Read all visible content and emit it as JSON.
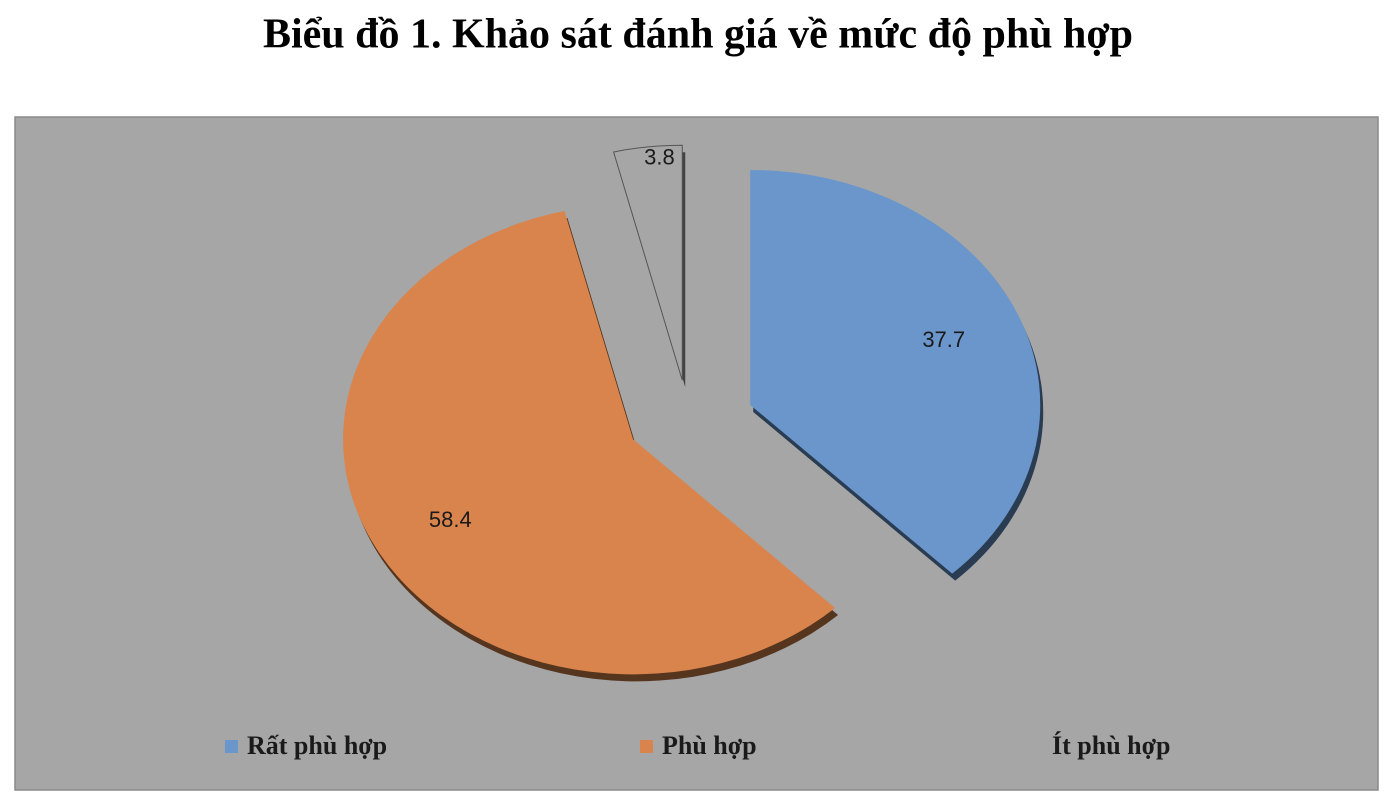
{
  "chart_data": {
    "type": "pie",
    "title": "Biểu đồ 1. Khảo sát đánh giá về mức độ phù hợp",
    "categories": [
      "Rất phù hợp",
      "Phù hợp",
      "Ít phù hợp"
    ],
    "values": [
      37.7,
      58.4,
      3.8
    ],
    "colors": [
      "#6a96cb",
      "#d8844c",
      "#a6a6a6"
    ],
    "legend": "bottom"
  }
}
